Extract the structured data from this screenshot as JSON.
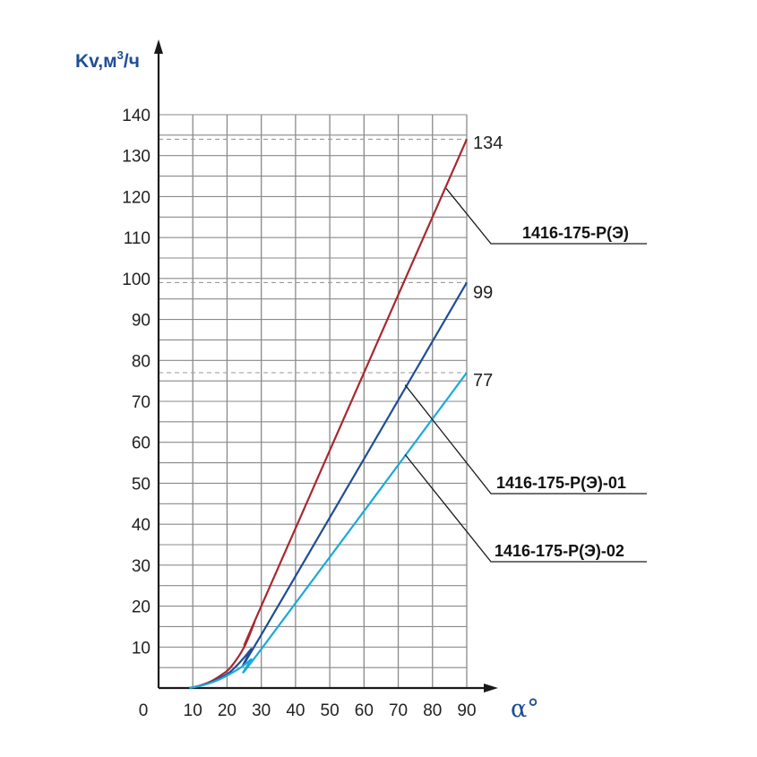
{
  "chart_data": {
    "type": "line",
    "xlabel": "α°",
    "ylabel_main": "Kv,м",
    "ylabel_sup": "3",
    "ylabel_tail": "/ч",
    "origin_label": "0",
    "xlim": [
      0,
      90
    ],
    "ylim": [
      0,
      140
    ],
    "x_ticks": [
      10,
      20,
      30,
      40,
      50,
      60,
      70,
      80,
      90
    ],
    "y_ticks": [
      10,
      20,
      30,
      40,
      50,
      60,
      70,
      80,
      90,
      100,
      110,
      120,
      130,
      140
    ],
    "grid": true,
    "series": [
      {
        "name": "1416-175-Р(Э)",
        "color": "#a8282d",
        "end_label": "134",
        "label_anchor": {
          "x": 84,
          "y": 122
        },
        "points": [
          [
            9,
            0
          ],
          [
            12,
            0.6
          ],
          [
            15,
            1.5
          ],
          [
            18,
            3
          ],
          [
            21,
            5
          ],
          [
            25,
            10
          ],
          [
            28,
            16
          ],
          [
            30,
            20
          ],
          [
            90,
            134
          ]
        ]
      },
      {
        "name": "1416-175-Р(Э)-01",
        "color": "#1f4e96",
        "end_label": "99",
        "label_anchor": {
          "x": 72,
          "y": 74
        },
        "points": [
          [
            9,
            0
          ],
          [
            12,
            0.5
          ],
          [
            15,
            1.3
          ],
          [
            18,
            2.5
          ],
          [
            21,
            4
          ],
          [
            24,
            6.5
          ],
          [
            27,
            9.5
          ],
          [
            30,
            13
          ],
          [
            90,
            99
          ]
        ]
      },
      {
        "name": "1416-175-Р(Э)-02",
        "color": "#1ba9da",
        "end_label": "77",
        "label_anchor": {
          "x": 72,
          "y": 57
        },
        "points": [
          [
            9,
            0
          ],
          [
            12,
            0.5
          ],
          [
            15,
            1.2
          ],
          [
            18,
            2.2
          ],
          [
            21,
            3.5
          ],
          [
            24,
            5
          ],
          [
            27,
            7
          ],
          [
            30,
            9.5
          ],
          [
            90,
            77
          ]
        ]
      }
    ],
    "reference_lines": [
      134,
      99,
      77
    ]
  }
}
